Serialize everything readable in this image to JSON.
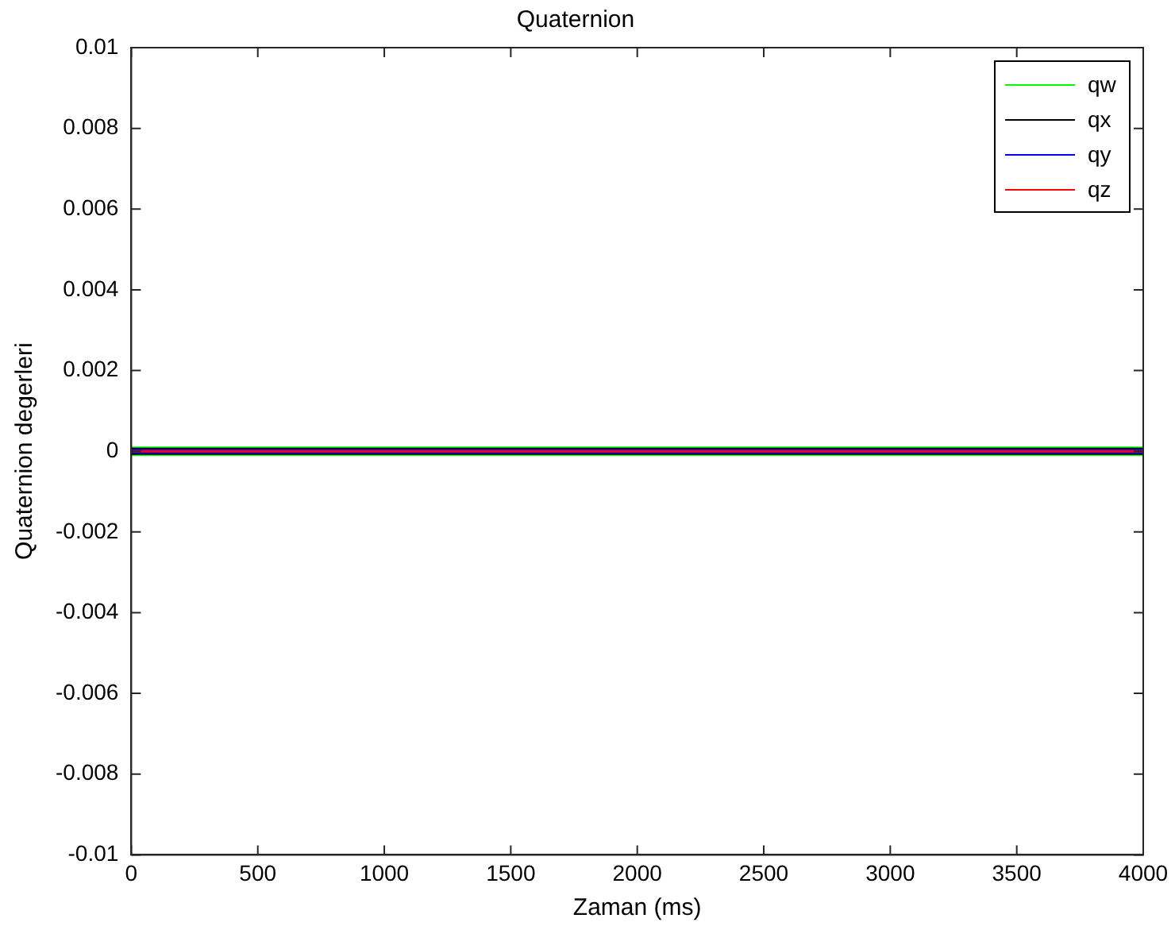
{
  "chart_data": {
    "type": "line",
    "title": "Quaternion",
    "xlabel": "Zaman (ms)",
    "ylabel": "Quaternion degerleri",
    "x": [
      0,
      4000
    ],
    "series": [
      {
        "name": "qw",
        "color": "#00ff00",
        "values": [
          0,
          0
        ]
      },
      {
        "name": "qx",
        "color": "#000000",
        "values": [
          0,
          0
        ]
      },
      {
        "name": "qy",
        "color": "#0000ff",
        "values": [
          0,
          0
        ]
      },
      {
        "name": "qz",
        "color": "#ff0000",
        "values": [
          0,
          0
        ]
      }
    ],
    "xlim": [
      0,
      4000
    ],
    "xticks": [
      0,
      500,
      1000,
      1500,
      2000,
      2500,
      3000,
      3500,
      4000
    ],
    "ylim": [
      -0.01,
      0.01
    ],
    "yticks": [
      -0.01,
      -0.008,
      -0.006,
      -0.004,
      -0.002,
      0,
      0.002,
      0.004,
      0.006,
      0.008,
      0.01
    ],
    "grid": false,
    "legend": "top right",
    "marker": "none",
    "line_style": "solid"
  }
}
